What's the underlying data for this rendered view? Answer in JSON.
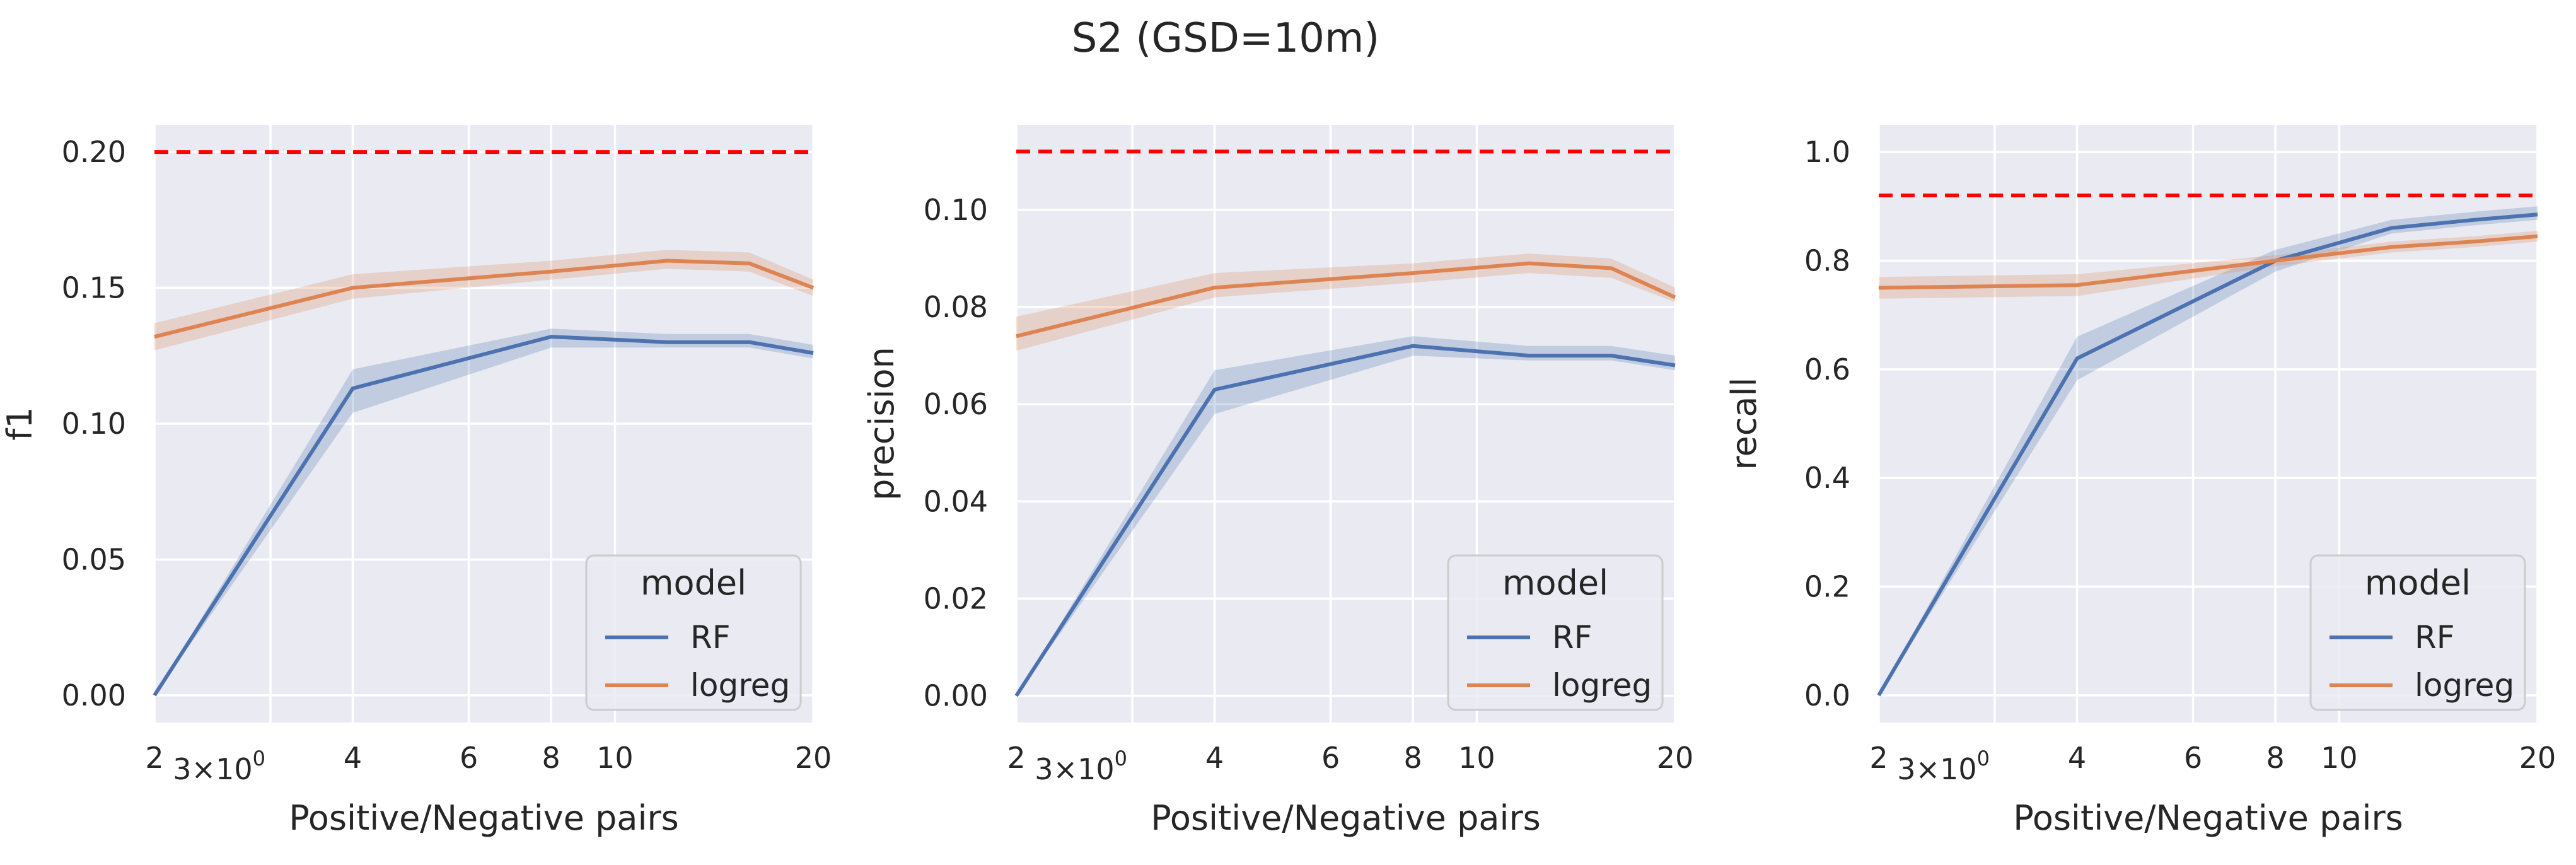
{
  "figure": {
    "title": "S2 (GSD=10m)",
    "background": "#ffffff",
    "axes_background": "#eaeaf2",
    "grid_color": "#ffffff",
    "baseline_color": "#ff0000"
  },
  "chart_data": [
    {
      "type": "line",
      "xlabel": "Positive/Negative pairs",
      "ylabel": "f1",
      "xscale": "log",
      "xlim": [
        2,
        20
      ],
      "ylim": [
        -0.01,
        0.21
      ],
      "xticks": [
        {
          "value": 2,
          "label": "2"
        },
        {
          "value": 3,
          "label": "3×10",
          "sup": "0"
        },
        {
          "value": 4,
          "label": "4"
        },
        {
          "value": 6,
          "label": "6"
        },
        {
          "value": 8,
          "label": "8"
        },
        {
          "value": 10,
          "label": "10"
        },
        {
          "value": 20,
          "label": "20"
        }
      ],
      "yticks": [
        {
          "value": 0.0,
          "label": "0.00"
        },
        {
          "value": 0.05,
          "label": "0.05"
        },
        {
          "value": 0.1,
          "label": "0.10"
        },
        {
          "value": 0.15,
          "label": "0.15"
        },
        {
          "value": 0.2,
          "label": "0.20"
        }
      ],
      "baseline": 0.2,
      "legend": {
        "title": "model",
        "position": "lower-right"
      },
      "series": [
        {
          "name": "RF",
          "color": "#4c72b0",
          "x": [
            2,
            4,
            8,
            12,
            16,
            20
          ],
          "y": [
            0.0,
            0.113,
            0.132,
            0.13,
            0.13,
            0.126
          ],
          "lo": [
            0.0,
            0.104,
            0.128,
            0.128,
            0.128,
            0.124
          ],
          "hi": [
            0.0,
            0.12,
            0.135,
            0.133,
            0.133,
            0.129
          ]
        },
        {
          "name": "logreg",
          "color": "#dd8452",
          "x": [
            2,
            4,
            8,
            12,
            16,
            20
          ],
          "y": [
            0.132,
            0.15,
            0.156,
            0.16,
            0.159,
            0.15
          ],
          "lo": [
            0.127,
            0.146,
            0.153,
            0.157,
            0.156,
            0.147
          ],
          "hi": [
            0.137,
            0.155,
            0.16,
            0.164,
            0.163,
            0.153
          ]
        }
      ]
    },
    {
      "type": "line",
      "xlabel": "Positive/Negative pairs",
      "ylabel": "precision",
      "xscale": "log",
      "xlim": [
        2,
        20
      ],
      "ylim": [
        -0.0055,
        0.1175
      ],
      "xticks": [
        {
          "value": 2,
          "label": "2"
        },
        {
          "value": 3,
          "label": "3×10",
          "sup": "0"
        },
        {
          "value": 4,
          "label": "4"
        },
        {
          "value": 6,
          "label": "6"
        },
        {
          "value": 8,
          "label": "8"
        },
        {
          "value": 10,
          "label": "10"
        },
        {
          "value": 20,
          "label": "20"
        }
      ],
      "yticks": [
        {
          "value": 0.0,
          "label": "0.00"
        },
        {
          "value": 0.02,
          "label": "0.02"
        },
        {
          "value": 0.04,
          "label": "0.04"
        },
        {
          "value": 0.06,
          "label": "0.06"
        },
        {
          "value": 0.08,
          "label": "0.08"
        },
        {
          "value": 0.1,
          "label": "0.10"
        }
      ],
      "baseline": 0.112,
      "legend": {
        "title": "model",
        "position": "lower-right"
      },
      "series": [
        {
          "name": "RF",
          "color": "#4c72b0",
          "x": [
            2,
            4,
            8,
            12,
            16,
            20
          ],
          "y": [
            0.0,
            0.063,
            0.072,
            0.07,
            0.07,
            0.068
          ],
          "lo": [
            0.0,
            0.058,
            0.07,
            0.069,
            0.069,
            0.067
          ],
          "hi": [
            0.0,
            0.067,
            0.074,
            0.072,
            0.072,
            0.07
          ]
        },
        {
          "name": "logreg",
          "color": "#dd8452",
          "x": [
            2,
            4,
            8,
            12,
            16,
            20
          ],
          "y": [
            0.074,
            0.084,
            0.087,
            0.089,
            0.088,
            0.082
          ],
          "lo": [
            0.071,
            0.082,
            0.085,
            0.087,
            0.086,
            0.081
          ],
          "hi": [
            0.078,
            0.087,
            0.089,
            0.091,
            0.09,
            0.084
          ]
        }
      ]
    },
    {
      "type": "line",
      "xlabel": "Positive/Negative pairs",
      "ylabel": "recall",
      "xscale": "log",
      "xlim": [
        2,
        20
      ],
      "ylim": [
        -0.05,
        1.05
      ],
      "xticks": [
        {
          "value": 2,
          "label": "2"
        },
        {
          "value": 3,
          "label": "3×10",
          "sup": "0"
        },
        {
          "value": 4,
          "label": "4"
        },
        {
          "value": 6,
          "label": "6"
        },
        {
          "value": 8,
          "label": "8"
        },
        {
          "value": 10,
          "label": "10"
        },
        {
          "value": 20,
          "label": "20"
        }
      ],
      "yticks": [
        {
          "value": 0.0,
          "label": "0.0"
        },
        {
          "value": 0.2,
          "label": "0.2"
        },
        {
          "value": 0.4,
          "label": "0.4"
        },
        {
          "value": 0.6,
          "label": "0.6"
        },
        {
          "value": 0.8,
          "label": "0.8"
        },
        {
          "value": 1.0,
          "label": "1.0"
        }
      ],
      "baseline": 0.92,
      "legend": {
        "title": "model",
        "position": "lower-right"
      },
      "series": [
        {
          "name": "RF",
          "color": "#4c72b0",
          "x": [
            2,
            4,
            8,
            12,
            16,
            20
          ],
          "y": [
            0.0,
            0.62,
            0.8,
            0.86,
            0.875,
            0.885
          ],
          "lo": [
            0.0,
            0.58,
            0.78,
            0.85,
            0.865,
            0.875
          ],
          "hi": [
            0.0,
            0.66,
            0.82,
            0.875,
            0.89,
            0.9
          ]
        },
        {
          "name": "logreg",
          "color": "#dd8452",
          "x": [
            2,
            4,
            8,
            12,
            16,
            20
          ],
          "y": [
            0.75,
            0.755,
            0.8,
            0.825,
            0.835,
            0.845
          ],
          "lo": [
            0.73,
            0.735,
            0.79,
            0.815,
            0.825,
            0.835
          ],
          "hi": [
            0.77,
            0.775,
            0.81,
            0.835,
            0.845,
            0.855
          ]
        }
      ]
    }
  ]
}
